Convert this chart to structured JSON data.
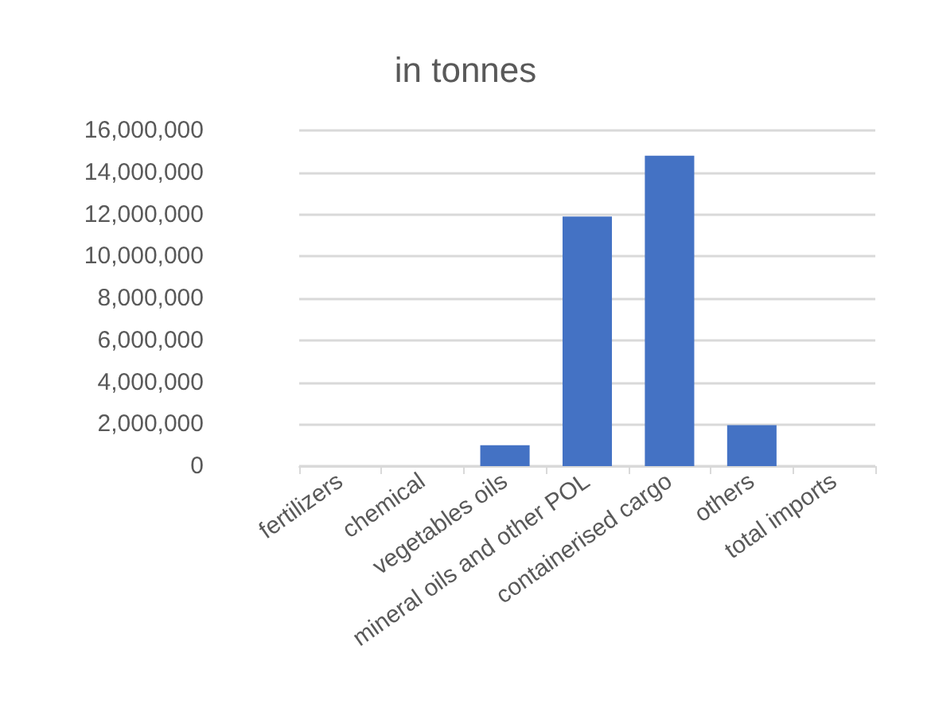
{
  "chart_data": {
    "type": "bar",
    "title": "in tonnes",
    "categories": [
      "fertilizers",
      "chemical",
      "vegetables oils",
      "mineral oils and other POL",
      "containerised cargo",
      "others",
      "total imports"
    ],
    "values": [
      0,
      0,
      1000000,
      11900000,
      14800000,
      1950000,
      0
    ],
    "color": "#4472c4",
    "ylim": [
      0,
      16000000
    ],
    "yticks": [
      0,
      {
        "value": 2000000,
        "label": "2,000,000"
      },
      {
        "value": 4000000,
        "label": "4,000,000"
      },
      {
        "value": 6000000,
        "label": "6,000,000"
      },
      {
        "value": 8000000,
        "label": "8,000,000"
      },
      {
        "value": 10000000,
        "label": "10,000,000"
      },
      {
        "value": 12000000,
        "label": "12,000,000"
      },
      {
        "value": 14000000,
        "label": "14,000,000"
      },
      {
        "value": 16000000,
        "label": "16,000,000"
      }
    ],
    "grid": "y"
  }
}
